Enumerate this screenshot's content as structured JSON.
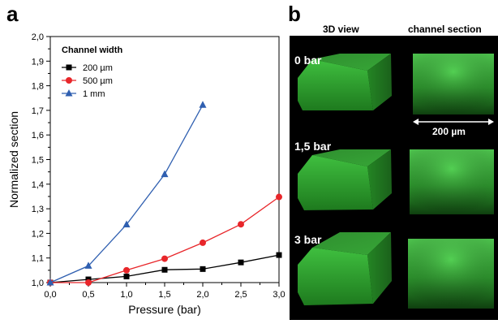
{
  "panel_a": {
    "letter": "a"
  },
  "panel_b": {
    "letter": "b",
    "col_3d": "3D view",
    "col_section": "channel section",
    "rows": [
      {
        "label": "0 bar"
      },
      {
        "label": "1,5 bar"
      },
      {
        "label": "3 bar"
      }
    ],
    "scale_label": "200 µm",
    "colors": {
      "green": "#35b035",
      "background": "#000000"
    }
  },
  "chart_data": {
    "type": "line",
    "xlabel": "Pressure (bar)",
    "ylabel": "Normalized section",
    "xlim": [
      0,
      3
    ],
    "ylim": [
      1.0,
      2.0
    ],
    "xticks": [
      "0,0",
      "0,5",
      "1,0",
      "1,5",
      "2,0",
      "2,5",
      "3,0"
    ],
    "yticks": [
      "1,0",
      "1,1",
      "1,2",
      "1,3",
      "1,4",
      "1,5",
      "1,6",
      "1,7",
      "1,8",
      "1,9",
      "2,0"
    ],
    "legend_title": "Channel width",
    "legend_position": "top-left",
    "grid": false,
    "series": [
      {
        "name": "200 µm",
        "color": "#000000",
        "marker": "square",
        "x": [
          0,
          0.5,
          1.0,
          1.5,
          2.0,
          2.5,
          3.0
        ],
        "y": [
          1.0,
          1.013,
          1.025,
          1.052,
          1.055,
          1.082,
          1.112
        ]
      },
      {
        "name": "500 µm",
        "color": "#e8262a",
        "marker": "circle",
        "x": [
          0,
          0.5,
          1.0,
          1.5,
          2.0,
          2.5,
          3.0
        ],
        "y": [
          1.0,
          1.0,
          1.05,
          1.097,
          1.162,
          1.237,
          1.348
        ]
      },
      {
        "name": "1 mm",
        "color": "#2f5fb0",
        "marker": "triangle",
        "x": [
          0,
          0.5,
          1.0,
          1.5,
          2.0
        ],
        "y": [
          1.0,
          1.068,
          1.236,
          1.44,
          1.722
        ]
      }
    ]
  }
}
